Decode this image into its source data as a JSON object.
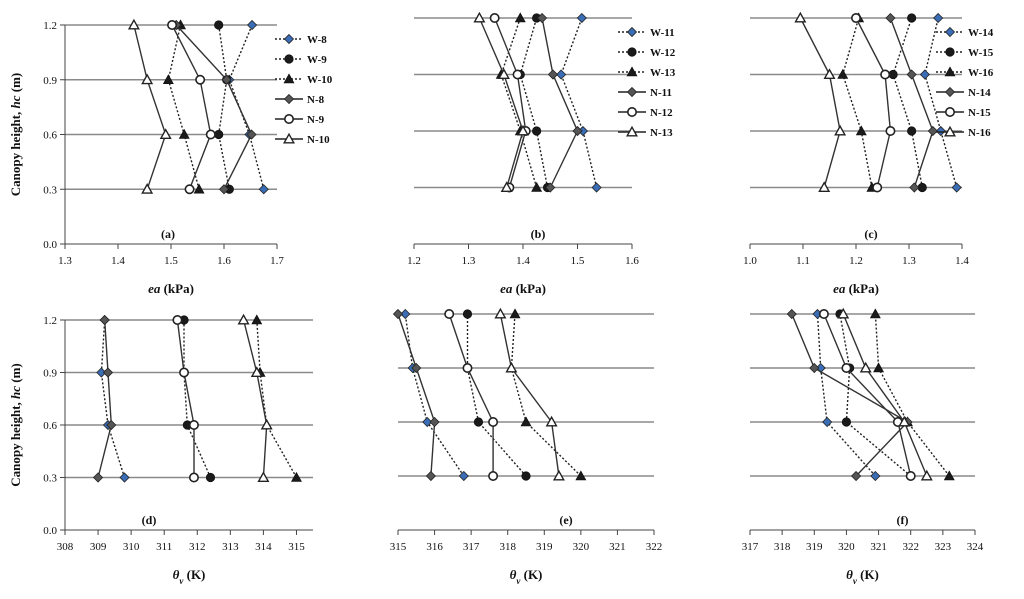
{
  "figure": {
    "ylabel": "Canopy height, hc (m)",
    "ylabel_parts": {
      "text": "Canopy height, ",
      "italic": "hc",
      "unit": " (m)"
    }
  },
  "styles": {
    "W": {
      "color": "#222222",
      "dash": "2,2"
    },
    "N": {
      "color": "#333333",
      "dash": ""
    },
    "marker_colors": {
      "diamond_W": "#3a6db5",
      "default": "#1a1a1a"
    }
  },
  "chart_data": [
    {
      "type": "line",
      "panel_label": "(a)",
      "xlabel": "ea (kPa)",
      "xlabel_parts": {
        "italic": "ea",
        "unit": " (kPa)"
      },
      "ylabel": "Canopy height, hc (m)",
      "xlim": [
        1.3,
        1.7
      ],
      "xticks": [
        "1.3",
        "1.4",
        "1.5",
        "1.6",
        "1.7"
      ],
      "ylim": [
        0,
        1.2
      ],
      "yticks": [
        "0.0",
        "0.3",
        "0.6",
        "0.9",
        "1.2"
      ],
      "y": [
        0.3,
        0.6,
        0.9,
        1.2
      ],
      "legend_position": "right",
      "series": [
        {
          "name": "W-8",
          "marker": "diamond",
          "line": "dotted",
          "x": [
            1.675,
            1.648,
            1.61,
            1.653
          ]
        },
        {
          "name": "W-9",
          "marker": "circle",
          "line": "dotted",
          "x": [
            1.61,
            1.59,
            1.605,
            1.59
          ]
        },
        {
          "name": "W-10",
          "marker": "triangle",
          "line": "dotted",
          "x": [
            1.553,
            1.525,
            1.495,
            1.518
          ]
        },
        {
          "name": "N-8",
          "marker": "diamond",
          "line": "solid",
          "x": [
            1.6,
            1.652,
            1.605,
            1.51
          ]
        },
        {
          "name": "N-9",
          "marker": "circle-open",
          "line": "solid",
          "x": [
            1.535,
            1.575,
            1.555,
            1.502
          ]
        },
        {
          "name": "N-10",
          "marker": "triangle-open",
          "line": "solid",
          "x": [
            1.455,
            1.49,
            1.455,
            1.43
          ]
        }
      ]
    },
    {
      "type": "line",
      "panel_label": "(b)",
      "xlabel": "ea (kPa)",
      "xlabel_parts": {
        "italic": "ea",
        "unit": " (kPa)"
      },
      "ylabel": "",
      "xlim": [
        1.2,
        1.6
      ],
      "xticks": [
        "1.2",
        "1.3",
        "1.4",
        "1.5",
        "1.6"
      ],
      "ylim": [
        0,
        1.2
      ],
      "yticks": [],
      "y": [
        0.3,
        0.6,
        0.9,
        1.2
      ],
      "legend_position": "right",
      "series": [
        {
          "name": "W-11",
          "marker": "diamond",
          "line": "dotted",
          "x": [
            1.535,
            1.51,
            1.47,
            1.508
          ]
        },
        {
          "name": "W-12",
          "marker": "circle",
          "line": "dotted",
          "x": [
            1.445,
            1.425,
            1.395,
            1.425
          ]
        },
        {
          "name": "W-13",
          "marker": "triangle",
          "line": "dotted",
          "x": [
            1.425,
            1.395,
            1.36,
            1.395
          ]
        },
        {
          "name": "N-11",
          "marker": "diamond",
          "line": "solid",
          "x": [
            1.45,
            1.5,
            1.455,
            1.435
          ]
        },
        {
          "name": "N-12",
          "marker": "circle-open",
          "line": "solid",
          "x": [
            1.375,
            1.405,
            1.39,
            1.348
          ]
        },
        {
          "name": "N-13",
          "marker": "triangle-open",
          "line": "solid",
          "x": [
            1.37,
            1.4,
            1.365,
            1.32
          ]
        }
      ]
    },
    {
      "type": "line",
      "panel_label": "(c)",
      "xlabel": "ea (kPa)",
      "xlabel_parts": {
        "italic": "ea",
        "unit": " (kPa)"
      },
      "ylabel": "",
      "xlim": [
        1.0,
        1.4
      ],
      "xticks": [
        "1.0",
        "1.1",
        "1.2",
        "1.3",
        "1.4"
      ],
      "ylim": [
        0,
        1.2
      ],
      "yticks": [],
      "y": [
        0.3,
        0.6,
        0.9,
        1.2
      ],
      "legend_position": "right",
      "series": [
        {
          "name": "W-14",
          "marker": "diamond",
          "line": "dotted",
          "x": [
            1.39,
            1.36,
            1.33,
            1.355
          ]
        },
        {
          "name": "W-15",
          "marker": "circle",
          "line": "dotted",
          "x": [
            1.325,
            1.305,
            1.27,
            1.305
          ]
        },
        {
          "name": "W-16",
          "marker": "triangle",
          "line": "dotted",
          "x": [
            1.23,
            1.21,
            1.175,
            1.205
          ]
        },
        {
          "name": "N-14",
          "marker": "diamond",
          "line": "solid",
          "x": [
            1.31,
            1.345,
            1.305,
            1.265
          ]
        },
        {
          "name": "N-15",
          "marker": "circle-open",
          "line": "solid",
          "x": [
            1.24,
            1.265,
            1.255,
            1.2
          ]
        },
        {
          "name": "N-16",
          "marker": "triangle-open",
          "line": "solid",
          "x": [
            1.14,
            1.17,
            1.15,
            1.095
          ]
        }
      ]
    },
    {
      "type": "line",
      "panel_label": "(d)",
      "xlabel": "θv (K)",
      "xlabel_parts": {
        "italic": "θ",
        "sub": "v",
        "unit": " (K)"
      },
      "ylabel": "Canopy height, hc (m)",
      "xlim": [
        308,
        315.5
      ],
      "xticks": [
        "308",
        "309",
        "310",
        "311",
        "312",
        "313",
        "314",
        "315"
      ],
      "ylim": [
        0,
        1.2
      ],
      "yticks": [
        "0.0",
        "0.3",
        "0.6",
        "0.9",
        "1.2"
      ],
      "y": [
        0.3,
        0.6,
        0.9,
        1.2
      ],
      "series": [
        {
          "name": "W-8",
          "marker": "diamond",
          "line": "dotted",
          "x": [
            309.8,
            309.3,
            309.1,
            309.2
          ]
        },
        {
          "name": "W-9",
          "marker": "circle",
          "line": "dotted",
          "x": [
            312.4,
            311.7,
            311.6,
            311.6
          ]
        },
        {
          "name": "W-10",
          "marker": "triangle",
          "line": "dotted",
          "x": [
            315.0,
            314.1,
            313.9,
            313.8
          ]
        },
        {
          "name": "N-8",
          "marker": "diamond",
          "line": "solid",
          "x": [
            309.0,
            309.4,
            309.3,
            309.2
          ]
        },
        {
          "name": "N-9",
          "marker": "circle-open",
          "line": "solid",
          "x": [
            311.9,
            311.9,
            311.6,
            311.4
          ]
        },
        {
          "name": "N-10",
          "marker": "triangle-open",
          "line": "solid",
          "x": [
            314.0,
            314.1,
            313.8,
            313.4
          ]
        }
      ]
    },
    {
      "type": "line",
      "panel_label": "(e)",
      "xlabel": "θv (K)",
      "xlabel_parts": {
        "italic": "θ",
        "sub": "v",
        "unit": " (K)"
      },
      "ylabel": "",
      "xlim": [
        315,
        322
      ],
      "xticks": [
        "315",
        "316",
        "317",
        "318",
        "319",
        "320",
        "321",
        "322"
      ],
      "ylim": [
        0,
        1.2
      ],
      "yticks": [],
      "y": [
        0.3,
        0.6,
        0.9,
        1.2
      ],
      "series": [
        {
          "name": "W-11",
          "marker": "diamond",
          "line": "dotted",
          "x": [
            316.8,
            315.8,
            315.4,
            315.2
          ]
        },
        {
          "name": "W-12",
          "marker": "circle",
          "line": "dotted",
          "x": [
            318.5,
            317.2,
            316.9,
            316.9
          ]
        },
        {
          "name": "W-13",
          "marker": "triangle",
          "line": "dotted",
          "x": [
            320.0,
            318.5,
            318.1,
            318.2
          ]
        },
        {
          "name": "N-11",
          "marker": "diamond",
          "line": "solid",
          "x": [
            315.9,
            316.0,
            315.5,
            315.0
          ]
        },
        {
          "name": "N-12",
          "marker": "circle-open",
          "line": "solid",
          "x": [
            317.6,
            317.6,
            316.9,
            316.4
          ]
        },
        {
          "name": "N-13",
          "marker": "triangle-open",
          "line": "solid",
          "x": [
            319.4,
            319.2,
            318.1,
            317.8
          ]
        }
      ]
    },
    {
      "type": "line",
      "panel_label": "(f)",
      "xlabel": "θv (K)",
      "xlabel_parts": {
        "italic": "θ",
        "sub": "v",
        "unit": " (K)"
      },
      "ylabel": "",
      "xlim": [
        317,
        324
      ],
      "xticks": [
        "317",
        "318",
        "319",
        "320",
        "321",
        "322",
        "323",
        "324"
      ],
      "ylim": [
        0,
        1.2
      ],
      "yticks": [],
      "y": [
        0.3,
        0.6,
        0.9,
        1.2
      ],
      "series": [
        {
          "name": "W-14",
          "marker": "diamond",
          "line": "dotted",
          "x": [
            320.9,
            319.4,
            319.2,
            319.1
          ]
        },
        {
          "name": "W-15",
          "marker": "circle",
          "line": "dotted",
          "x": [
            322.0,
            320.0,
            320.1,
            319.8
          ]
        },
        {
          "name": "W-16",
          "marker": "triangle",
          "line": "dotted",
          "x": [
            323.2,
            321.9,
            321.0,
            320.9
          ]
        },
        {
          "name": "N-14",
          "marker": "diamond",
          "line": "solid",
          "x": [
            320.3,
            321.9,
            319.0,
            318.3
          ]
        },
        {
          "name": "N-15",
          "marker": "circle-open",
          "line": "solid",
          "x": [
            322.0,
            321.6,
            320.0,
            319.3
          ]
        },
        {
          "name": "N-16",
          "marker": "triangle-open",
          "line": "solid",
          "x": [
            322.5,
            321.8,
            320.6,
            319.9
          ]
        }
      ]
    }
  ]
}
